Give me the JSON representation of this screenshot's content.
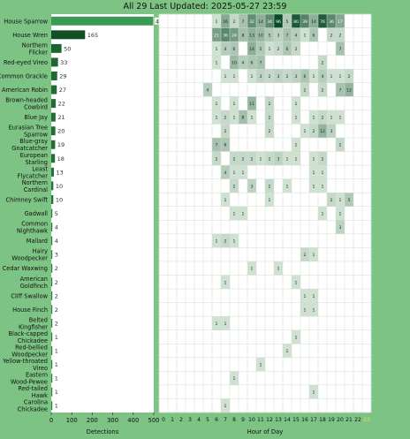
{
  "title": "All 29 Last Updated: 2025-05-27 23:59",
  "chart_data": [
    {
      "type": "bar",
      "orientation": "horizontal",
      "xlabel": "Detections",
      "xlim": [
        0,
        500
      ],
      "xticks": [
        "0",
        "100",
        "200",
        "300",
        "400",
        "500"
      ],
      "categories": [
        "House Sparrow",
        "House Wren",
        "Northern Flicker",
        "Red-eyed Vireo",
        "Common Grackle",
        "American Robin",
        "Brown-headed Cowbird",
        "Blue Jay",
        "Eurasian Tree Sparrow",
        "Blue-gray Gnatcatcher",
        "European Starling",
        "Least Flycatcher",
        "Northern Cardinal",
        "Chimney Swift",
        "Gadwall",
        "Common Nighthawk",
        "Mallard",
        "Hairy Woodpecker",
        "Cedar Waxwing",
        "American Goldfinch",
        "Cliff Swallow",
        "House Finch",
        "Belted Kingfisher",
        "Black-capped Chickadee",
        "Red-bellied Woodpecker",
        "Yellow-throated Vireo",
        "Eastern Wood-Pewee",
        "Red-tailed Hawk",
        "Carolina Chickadee"
      ],
      "values": [
        498,
        165,
        50,
        33,
        29,
        27,
        22,
        21,
        20,
        19,
        18,
        13,
        10,
        10,
        5,
        4,
        4,
        3,
        2,
        2,
        2,
        2,
        2,
        1,
        1,
        1,
        1,
        1,
        1
      ]
    },
    {
      "type": "heatmap",
      "xlabel": "Hour of Day",
      "hours": [
        "0",
        "1",
        "2",
        "3",
        "4",
        "5",
        "6",
        "7",
        "8",
        "9",
        "10",
        "11",
        "12",
        "13",
        "14",
        "15",
        "16",
        "17",
        "18",
        "19",
        "20",
        "21",
        "22",
        "23"
      ],
      "cells": [
        [
          [
            6,
            1
          ],
          [
            7,
            16
          ],
          [
            8,
            2
          ],
          [
            9,
            7
          ],
          [
            10,
            32
          ],
          [
            11,
            14
          ],
          [
            12,
            34
          ],
          [
            13,
            96
          ],
          [
            14,
            5
          ],
          [
            15,
            80
          ],
          [
            16,
            39
          ],
          [
            17,
            14
          ],
          [
            18,
            76
          ],
          [
            19,
            36
          ],
          [
            20,
            17
          ]
        ],
        [
          [
            6,
            21
          ],
          [
            7,
            36
          ],
          [
            8,
            24
          ],
          [
            9,
            8
          ],
          [
            10,
            13
          ],
          [
            11,
            10
          ],
          [
            12,
            5
          ],
          [
            13,
            3
          ],
          [
            14,
            7
          ],
          [
            15,
            4
          ],
          [
            16,
            1
          ],
          [
            17,
            6
          ],
          [
            19,
            2
          ],
          [
            20,
            2
          ]
        ],
        [
          [
            6,
            1
          ],
          [
            7,
            4
          ],
          [
            8,
            6
          ],
          [
            10,
            14
          ],
          [
            11,
            5
          ],
          [
            12,
            1
          ],
          [
            13,
            2
          ],
          [
            14,
            6
          ],
          [
            15,
            2
          ],
          [
            20,
            7
          ]
        ],
        [
          [
            6,
            1
          ],
          [
            8,
            10
          ],
          [
            9,
            4
          ],
          [
            10,
            6
          ],
          [
            11,
            7
          ],
          [
            18,
            2
          ]
        ],
        [
          [
            7,
            1
          ],
          [
            8,
            1
          ],
          [
            10,
            1
          ],
          [
            11,
            3
          ],
          [
            12,
            2
          ],
          [
            13,
            3
          ],
          [
            14,
            2
          ],
          [
            15,
            3
          ],
          [
            16,
            6
          ],
          [
            17,
            1
          ],
          [
            18,
            4
          ],
          [
            19,
            1
          ],
          [
            20,
            1
          ],
          [
            21,
            2
          ]
        ],
        [
          [
            5,
            4
          ],
          [
            16,
            2
          ],
          [
            18,
            2
          ],
          [
            20,
            7
          ],
          [
            21,
            12
          ]
        ],
        [
          [
            6,
            1
          ],
          [
            8,
            1
          ],
          [
            10,
            11
          ],
          [
            12,
            2
          ],
          [
            15,
            1
          ]
        ],
        [
          [
            6,
            1
          ],
          [
            7,
            2
          ],
          [
            8,
            1
          ],
          [
            9,
            8
          ],
          [
            10,
            1
          ],
          [
            12,
            2
          ],
          [
            15,
            1
          ],
          [
            17,
            1
          ],
          [
            18,
            2
          ],
          [
            19,
            1
          ],
          [
            20,
            1
          ]
        ],
        [
          [
            7,
            2
          ],
          [
            12,
            2
          ],
          [
            16,
            1
          ],
          [
            17,
            2
          ],
          [
            18,
            12
          ],
          [
            19,
            3
          ]
        ],
        [
          [
            6,
            7
          ],
          [
            7,
            6
          ],
          [
            15,
            1
          ],
          [
            20,
            2
          ]
        ],
        [
          [
            6,
            2
          ],
          [
            8,
            2
          ],
          [
            9,
            2
          ],
          [
            10,
            2
          ],
          [
            11,
            1
          ],
          [
            12,
            2
          ],
          [
            13,
            3
          ],
          [
            14,
            1
          ],
          [
            15,
            1
          ],
          [
            17,
            1
          ],
          [
            18,
            2
          ]
        ],
        [
          [
            7,
            4
          ],
          [
            8,
            1
          ],
          [
            9,
            1
          ],
          [
            17,
            1
          ],
          [
            18,
            1
          ]
        ],
        [
          [
            8,
            2
          ],
          [
            10,
            3
          ],
          [
            12,
            2
          ],
          [
            14,
            1
          ],
          [
            17,
            1
          ],
          [
            18,
            1
          ]
        ],
        [
          [
            7,
            1
          ],
          [
            12,
            1
          ],
          [
            19,
            2
          ],
          [
            20,
            1
          ],
          [
            21,
            5
          ]
        ],
        [
          [
            8,
            1
          ],
          [
            9,
            1
          ],
          [
            18,
            1
          ],
          [
            20,
            1
          ]
        ],
        [
          [
            20,
            3
          ]
        ],
        [
          [
            6,
            1
          ],
          [
            7,
            2
          ],
          [
            8,
            1
          ]
        ],
        [
          [
            16,
            2
          ],
          [
            17,
            1
          ]
        ],
        [
          [
            10,
            1
          ],
          [
            13,
            1
          ]
        ],
        [
          [
            7,
            1
          ],
          [
            15,
            1
          ]
        ],
        [
          [
            16,
            1
          ],
          [
            17,
            1
          ]
        ],
        [
          [
            16,
            1
          ],
          [
            17,
            1
          ]
        ],
        [
          [
            6,
            1
          ],
          [
            7,
            1
          ]
        ],
        [
          [
            15,
            1
          ]
        ],
        [
          [
            14,
            1
          ]
        ],
        [
          [
            11,
            1
          ]
        ],
        [
          [
            8,
            1
          ]
        ],
        [
          [
            17,
            1
          ]
        ],
        [
          [
            7,
            1
          ]
        ]
      ]
    }
  ]
}
